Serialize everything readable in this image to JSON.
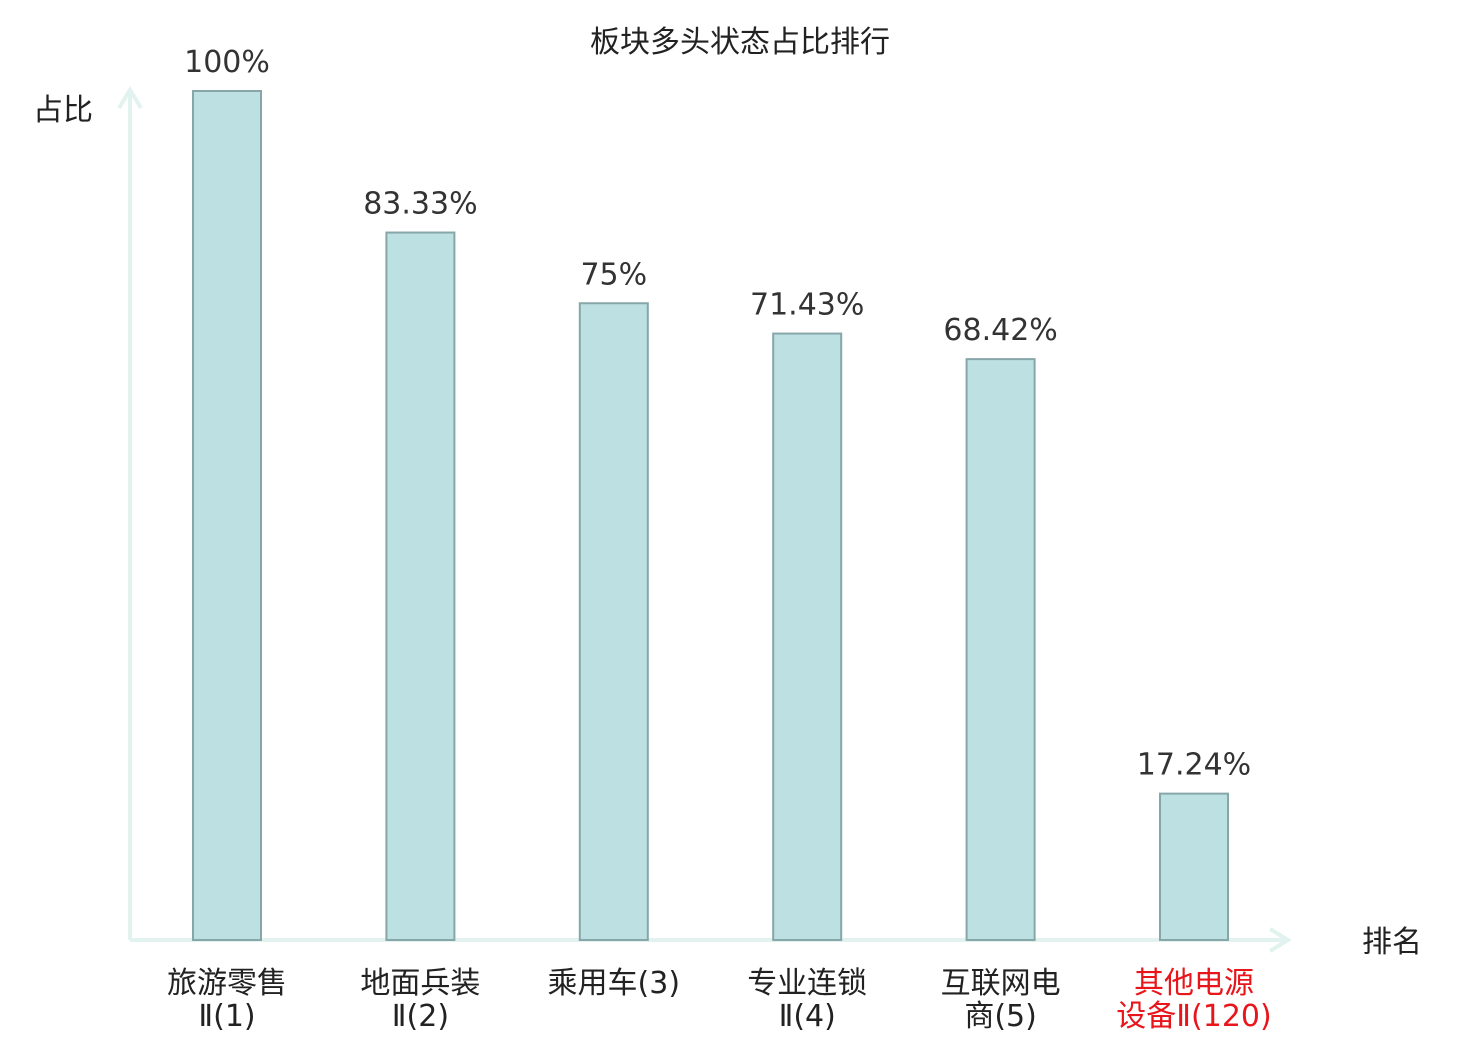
{
  "chart_data": {
    "type": "bar",
    "title": "板块多头状态占比排行",
    "ylabel": "占比",
    "xlabel": "排名",
    "ylim": [
      0,
      100
    ],
    "grid": false,
    "categories": [
      [
        "旅游零售",
        "Ⅱ(1)"
      ],
      [
        "地面兵装",
        "Ⅱ(2)"
      ],
      [
        "乘用车(3)"
      ],
      [
        "专业连锁",
        "Ⅱ(4)"
      ],
      [
        "互联网电",
        "商(5)"
      ],
      [
        "其他电源",
        "设备Ⅱ(120)"
      ]
    ],
    "values": [
      100,
      83.33,
      75,
      71.43,
      68.42,
      17.24
    ],
    "value_labels": [
      "100%",
      "83.33%",
      "75%",
      "71.43%",
      "68.42%",
      "17.24%"
    ],
    "highlight_index": 5,
    "colors": {
      "bar_fill": "#bde0e3",
      "bar_stroke": "#86a6a8",
      "axis": "#e2f2ef",
      "text": "#222222",
      "value_text": "#333333",
      "highlight_text": "#e8161b"
    }
  }
}
